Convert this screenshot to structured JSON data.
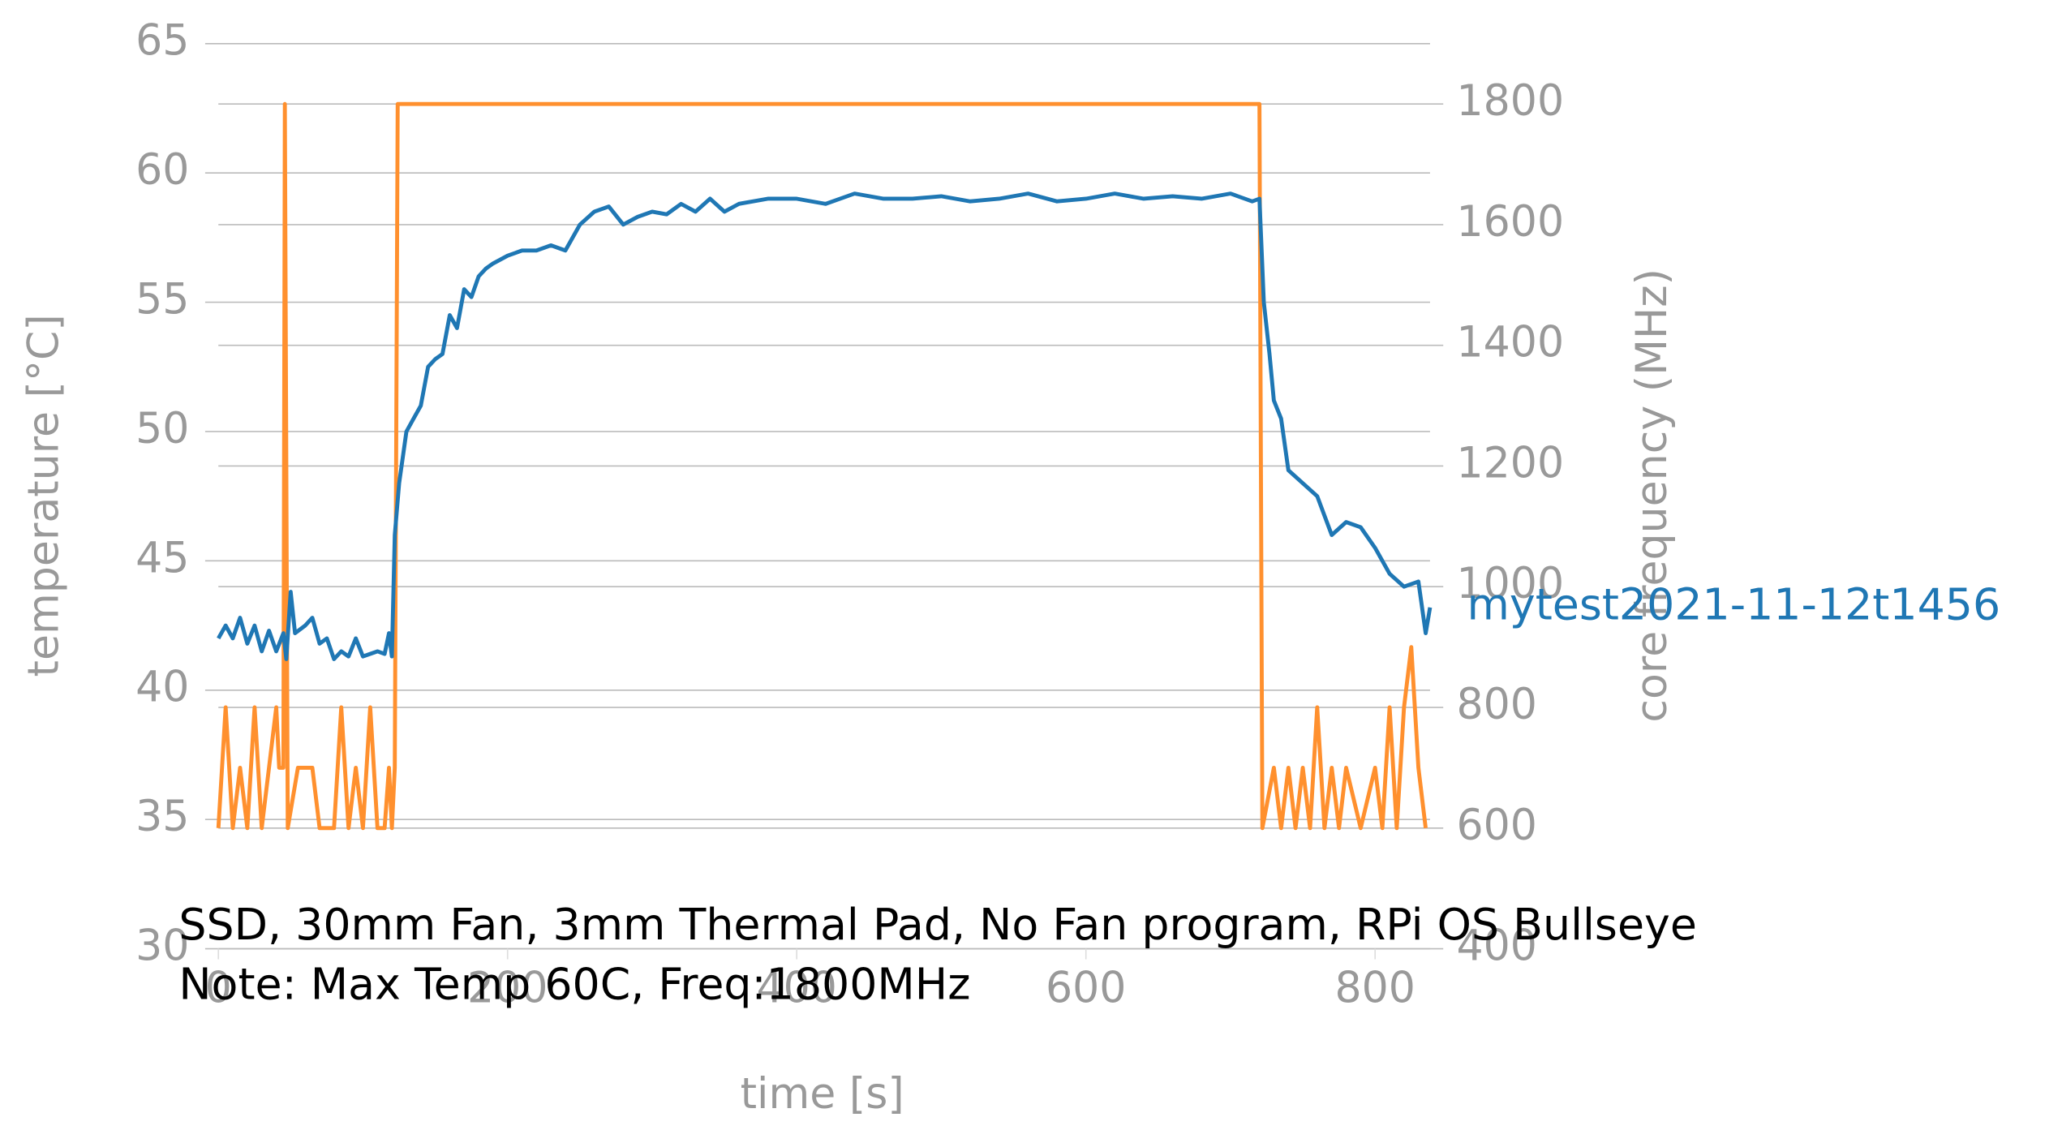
{
  "chart_data": {
    "type": "line",
    "xlabel": "time [s]",
    "ylabel": "temperature [°C]",
    "y2label": "core frequency (MHz)",
    "annotations": [
      "SSD, 30mm Fan, 3mm Thermal Pad, No Fan program, RPi OS Bullseye",
      "Note: Max Temp 60C, Freq:1800MHz"
    ],
    "xlim": [
      0,
      838
    ],
    "xticks": [
      0,
      200,
      400,
      600,
      800
    ],
    "ylim": [
      30,
      65
    ],
    "yticks": [
      30,
      35,
      40,
      45,
      50,
      55,
      60,
      65
    ],
    "y2lim": [
      400,
      1900
    ],
    "y2ticks": [
      400,
      600,
      800,
      1000,
      1200,
      1400,
      1600,
      1800
    ],
    "grid": true,
    "series": [
      {
        "name": "mytest2021-11-12t1456",
        "color": "#1f77b4",
        "axis": "y",
        "x": [
          0,
          5,
          10,
          15,
          20,
          25,
          30,
          35,
          40,
          45,
          47,
          50,
          53,
          60,
          65,
          70,
          75,
          80,
          85,
          90,
          95,
          100,
          110,
          115,
          118,
          120,
          122,
          125,
          130,
          135,
          140,
          145,
          150,
          155,
          160,
          165,
          170,
          175,
          180,
          185,
          190,
          200,
          210,
          220,
          230,
          240,
          250,
          260,
          270,
          280,
          290,
          300,
          310,
          320,
          330,
          340,
          350,
          360,
          380,
          400,
          420,
          440,
          460,
          480,
          500,
          520,
          540,
          560,
          580,
          600,
          620,
          640,
          660,
          680,
          700,
          715,
          720,
          723,
          727,
          730,
          735,
          740,
          750,
          760,
          770,
          780,
          790,
          800,
          810,
          820,
          830,
          835,
          838
        ],
        "values": [
          42,
          42.5,
          42,
          42.8,
          41.8,
          42.5,
          41.5,
          42.3,
          41.5,
          42.2,
          41.2,
          43.8,
          42.2,
          42.5,
          42.8,
          41.8,
          42,
          41.2,
          41.5,
          41.3,
          42,
          41.3,
          41.5,
          41.4,
          42.2,
          41.3,
          46,
          48,
          50,
          50.5,
          51,
          52.5,
          52.8,
          53,
          54.5,
          54,
          55.5,
          55.2,
          56,
          56.3,
          56.5,
          56.8,
          57,
          57,
          57.2,
          57,
          58,
          58.5,
          58.7,
          58,
          58.3,
          58.5,
          58.4,
          58.8,
          58.5,
          59,
          58.5,
          58.8,
          59,
          59,
          58.8,
          59.2,
          59,
          59,
          59.1,
          58.9,
          59,
          59.2,
          58.9,
          59,
          59.2,
          59,
          59.1,
          59,
          59.2,
          58.9,
          59,
          55,
          53,
          51.2,
          50.5,
          48.5,
          48,
          47.5,
          46,
          46.5,
          46.3,
          45.5,
          44.5,
          44,
          44.2,
          42.2,
          43.2
        ]
      },
      {
        "color": "#ff902e",
        "axis": "y2",
        "x": [
          0,
          5,
          10,
          15,
          20,
          25,
          30,
          40,
          42,
          45,
          46,
          48,
          55,
          65,
          70,
          80,
          85,
          90,
          95,
          100,
          105,
          110,
          115,
          118,
          120,
          122,
          124,
          720,
          722,
          730,
          735,
          740,
          745,
          750,
          755,
          760,
          765,
          770,
          775,
          780,
          790,
          800,
          805,
          810,
          815,
          820,
          825,
          830,
          835
        ],
        "values": [
          600,
          800,
          600,
          700,
          600,
          800,
          600,
          800,
          700,
          700,
          1800,
          600,
          700,
          700,
          600,
          600,
          800,
          600,
          700,
          600,
          800,
          600,
          600,
          700,
          600,
          700,
          1800,
          1800,
          600,
          700,
          600,
          700,
          600,
          700,
          600,
          800,
          600,
          700,
          600,
          700,
          600,
          700,
          600,
          800,
          600,
          800,
          900,
          700,
          600
        ]
      }
    ]
  }
}
